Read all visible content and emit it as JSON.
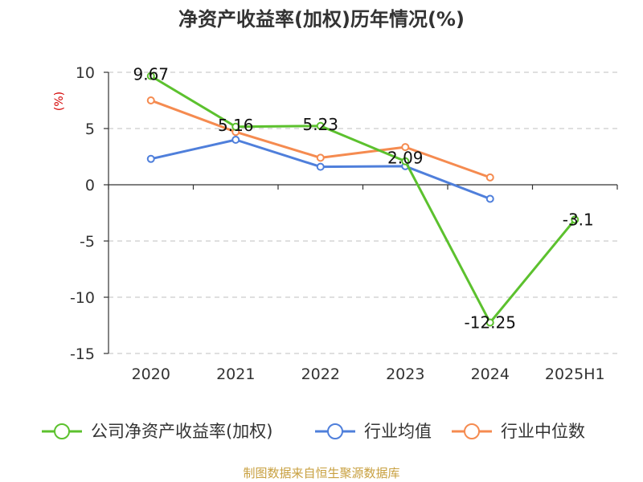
{
  "chart_data": {
    "type": "line",
    "title": "净资产收益率(加权)历年情况(%)",
    "ylabel": "(%)",
    "categories": [
      "2020",
      "2021",
      "2022",
      "2023",
      "2024",
      "2025H1"
    ],
    "ylim": [
      -15,
      10
    ],
    "yticks": [
      10,
      5,
      0,
      -5,
      -10,
      -15
    ],
    "grid": true,
    "legend_position": "bottom",
    "series": [
      {
        "name": "公司净资产收益率(加权)",
        "color": "#5cc12e",
        "values": [
          9.67,
          5.16,
          5.23,
          2.09,
          -12.25,
          -3.1
        ],
        "labels": [
          "9.67",
          "5.16",
          "5.23",
          "2.09",
          "-12.25",
          "-3.1"
        ]
      },
      {
        "name": "行业均值",
        "color": "#4f7fdb",
        "values": [
          2.3,
          4.0,
          1.6,
          1.65,
          -1.25,
          null
        ]
      },
      {
        "name": "行业中位数",
        "color": "#f58b50",
        "values": [
          7.5,
          4.7,
          2.4,
          3.35,
          0.65,
          null
        ]
      }
    ]
  },
  "source": "制图数据来自恒生聚源数据库"
}
